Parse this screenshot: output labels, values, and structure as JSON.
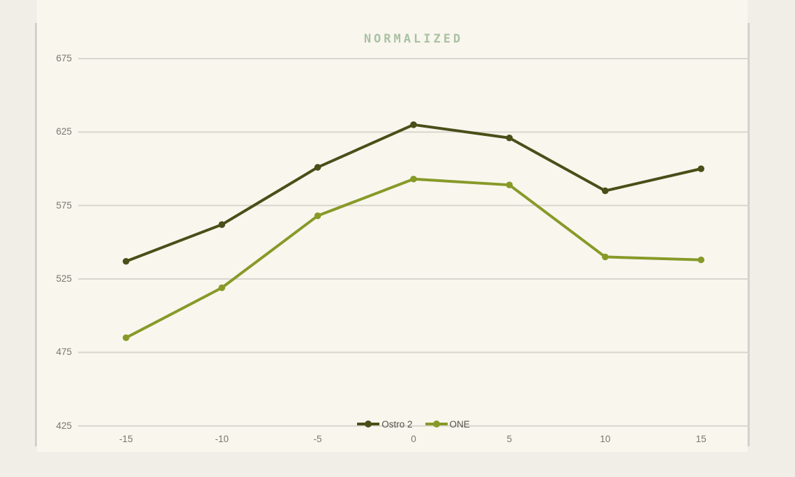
{
  "chart_data": {
    "type": "line",
    "title": "NORMALIZED",
    "xlabel": "",
    "ylabel": "",
    "categories": [
      "-15",
      "-10",
      "-5",
      "0",
      "5",
      "10",
      "15"
    ],
    "series": [
      {
        "name": "Ostro 2",
        "color": "#4a4e18",
        "values": [
          537,
          562,
          601,
          630,
          621,
          585,
          600
        ]
      },
      {
        "name": "ONE",
        "color": "#879a28",
        "values": [
          485,
          519,
          568,
          593,
          589,
          540,
          538
        ]
      }
    ],
    "ylim": [
      425,
      675
    ],
    "yticks": [
      675,
      625,
      575,
      525,
      475,
      425
    ],
    "grid": "horizontal",
    "legend_position": "bottom-center",
    "colors": {
      "title": "#a9c2a2",
      "tick_labels": "#7b7770",
      "legend_text": "#56524a",
      "gridline": "#d9d6cf",
      "frame_border": "#d3d1cb",
      "plot_background": "#f9f6ee",
      "outer_background": "#f1eee8"
    }
  }
}
